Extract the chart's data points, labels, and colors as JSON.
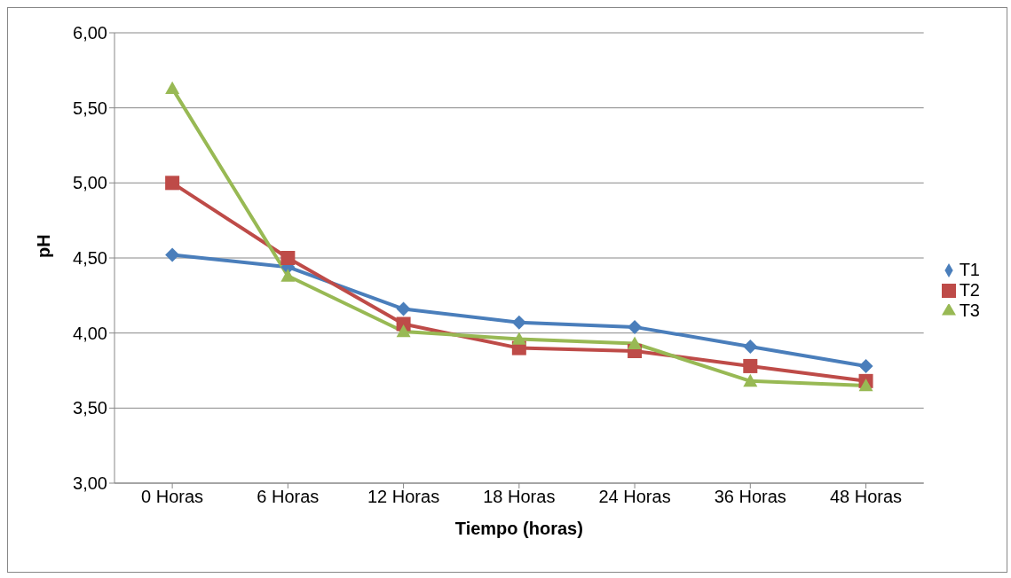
{
  "chart_data": {
    "type": "line",
    "xlabel": "Tiempo (horas)",
    "ylabel": "pH",
    "categories": [
      "0 Horas",
      "6 Horas",
      "12 Horas",
      "18 Horas",
      "24 Horas",
      "36 Horas",
      "48 Horas"
    ],
    "series": [
      {
        "name": "T1",
        "color": "#4a7ebb",
        "marker": "diamond",
        "values": [
          4.52,
          4.44,
          4.16,
          4.07,
          4.04,
          3.91,
          3.78
        ]
      },
      {
        "name": "T2",
        "color": "#be4b48",
        "marker": "square",
        "values": [
          5.0,
          4.5,
          4.06,
          3.9,
          3.88,
          3.78,
          3.68
        ]
      },
      {
        "name": "T3",
        "color": "#98b954",
        "marker": "triangle",
        "values": [
          5.63,
          4.38,
          4.01,
          3.96,
          3.93,
          3.68,
          3.65
        ]
      }
    ],
    "ylim": [
      3,
      6
    ],
    "yticks": [
      {
        "value": 3,
        "label": "3,00"
      },
      {
        "value": 3.5,
        "label": "3,50"
      },
      {
        "value": 4,
        "label": "4,00"
      },
      {
        "value": 4.5,
        "label": "4,50"
      },
      {
        "value": 5,
        "label": "5,00"
      },
      {
        "value": 5.5,
        "label": "5,50"
      },
      {
        "value": 6,
        "label": "6,00"
      }
    ],
    "grid": "y",
    "legend": "right",
    "line_style": "solid"
  }
}
